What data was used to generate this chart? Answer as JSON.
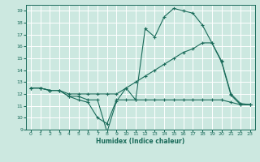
{
  "title": "",
  "xlabel": "Humidex (Indice chaleur)",
  "bg_color": "#cce8e0",
  "line_color": "#1a6b5a",
  "grid_color": "#b0d8ce",
  "xlim": [
    -0.5,
    23.5
  ],
  "ylim": [
    9,
    19.5
  ],
  "yticks": [
    9,
    10,
    11,
    12,
    13,
    14,
    15,
    16,
    17,
    18,
    19
  ],
  "xticks": [
    0,
    1,
    2,
    3,
    4,
    5,
    6,
    7,
    8,
    9,
    10,
    11,
    12,
    13,
    14,
    15,
    16,
    17,
    18,
    19,
    20,
    21,
    22,
    23
  ],
  "line1_x": [
    0,
    1,
    2,
    3,
    4,
    5,
    6,
    7,
    8,
    9,
    10,
    11,
    12,
    13,
    14,
    15,
    16,
    17,
    18,
    19,
    20,
    21,
    22,
    23
  ],
  "line1_y": [
    12.5,
    12.5,
    12.3,
    12.3,
    11.8,
    11.8,
    11.5,
    11.5,
    8.8,
    11.4,
    12.5,
    11.5,
    17.5,
    16.8,
    18.5,
    19.2,
    19.0,
    18.8,
    17.8,
    16.3,
    14.7,
    11.9,
    11.1,
    11.1
  ],
  "line2_x": [
    0,
    1,
    2,
    3,
    4,
    5,
    6,
    7,
    8,
    9,
    10,
    11,
    12,
    13,
    14,
    15,
    16,
    17,
    18,
    19,
    20,
    21,
    22,
    23
  ],
  "line2_y": [
    12.5,
    12.5,
    12.3,
    12.3,
    12.0,
    12.0,
    12.0,
    12.0,
    12.0,
    12.0,
    12.5,
    13.0,
    13.5,
    14.0,
    14.5,
    15.0,
    15.5,
    15.8,
    16.3,
    16.3,
    14.8,
    12.0,
    11.2,
    11.1
  ],
  "line3_x": [
    0,
    1,
    2,
    3,
    4,
    5,
    6,
    7,
    8,
    9,
    10,
    11,
    12,
    13,
    14,
    15,
    16,
    17,
    18,
    19,
    20,
    21,
    22,
    23
  ],
  "line3_y": [
    12.5,
    12.5,
    12.3,
    12.3,
    11.8,
    11.5,
    11.3,
    10.0,
    9.5,
    11.5,
    11.5,
    11.5,
    11.5,
    11.5,
    11.5,
    11.5,
    11.5,
    11.5,
    11.5,
    11.5,
    11.5,
    11.3,
    11.1,
    11.1
  ]
}
